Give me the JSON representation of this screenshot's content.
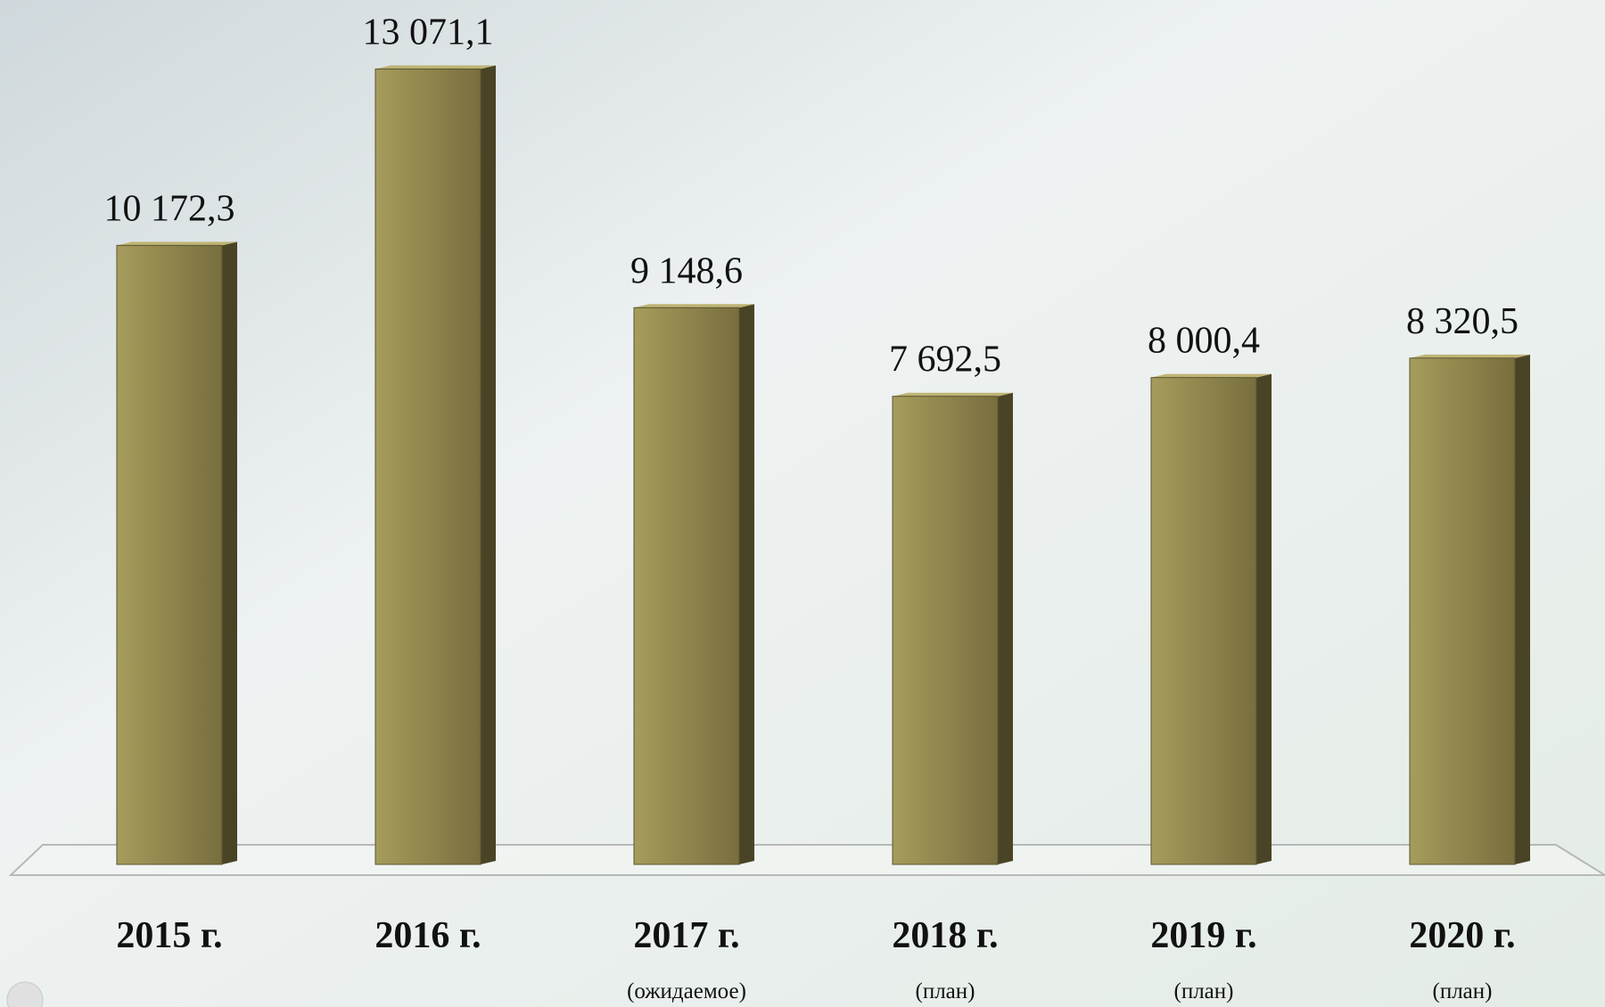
{
  "chart_data": {
    "type": "bar3d",
    "categories": [
      "2015 г.",
      "2016 г.",
      "2017 г.",
      "2018 г.",
      "2019 г.",
      "2020 г."
    ],
    "sublabels": [
      null,
      null,
      "(ожидаемое)",
      "(план)",
      "(план)",
      "(план)"
    ],
    "values": [
      10172.3,
      13071.1,
      9148.6,
      7692.5,
      8000.4,
      8320.5
    ],
    "value_labels": [
      "10 172,3",
      "13 071,1",
      "9 148,6",
      "7 692,5",
      "8 000,4",
      "8 320,5"
    ],
    "color": "#9a9050",
    "ylim": [
      0,
      14000
    ]
  }
}
